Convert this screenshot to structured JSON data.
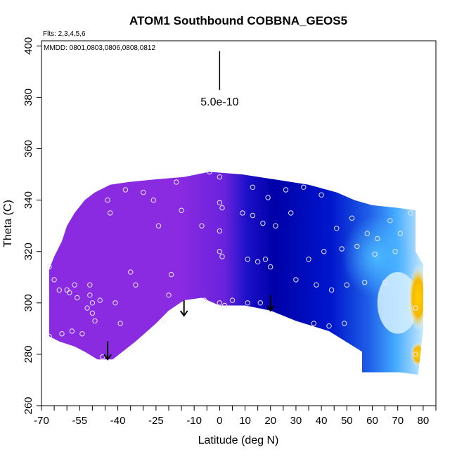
{
  "chart_data": {
    "type": "heatmap",
    "title": "ATOM1 Southbound COBBNA_GEOS5",
    "xlabel": "Latitude (deg N)",
    "ylabel": "Theta (C)",
    "xlim": [
      -70,
      85
    ],
    "ylim": [
      260,
      402
    ],
    "x_ticks": [
      -70,
      -55,
      -40,
      -25,
      -10,
      0,
      10,
      20,
      30,
      40,
      50,
      60,
      70,
      80
    ],
    "x_tick_labels": [
      "-70",
      "-55",
      "-40",
      "-25",
      "-10",
      "0",
      "10",
      "20",
      "30",
      "40",
      "50",
      "60",
      "70",
      "80"
    ],
    "y_ticks": [
      260,
      280,
      300,
      320,
      340,
      360,
      380,
      400
    ],
    "y_tick_labels": [
      "260",
      "280",
      "300",
      "320",
      "340",
      "360",
      "380",
      "400"
    ],
    "annotations": {
      "flights": "Flts: 2,3,4,5,6",
      "dates": "MMDD: 0801,0803,0806,0808,0812"
    },
    "scale_bar": {
      "label": "5.0e-10",
      "x": 0,
      "y_top": 398,
      "y_bottom": 385
    },
    "colors": {
      "south": "#8a2be2",
      "south_edge": "#7b2fe6",
      "transition": "#3a18cc",
      "north": "#0010c0",
      "deep": "#0000a8",
      "cyan": "#44aaff",
      "pale": "#cfeeff",
      "yellow": "#ffd000",
      "orange": "#f0a000",
      "points": "#e8e8ff"
    },
    "arrows": [
      {
        "x": -44,
        "y_top": 285,
        "y_bottom": 278
      },
      {
        "x": -14,
        "y_top": 301,
        "y_bottom": 295
      },
      {
        "x": 20,
        "y_top": 303,
        "y_bottom": 297
      }
    ],
    "points": [
      [
        -67,
        314
      ],
      [
        -67,
        287
      ],
      [
        -65,
        309
      ],
      [
        -63,
        305
      ],
      [
        -62,
        288
      ],
      [
        -60,
        305
      ],
      [
        -59,
        304
      ],
      [
        -58,
        289
      ],
      [
        -57,
        307
      ],
      [
        -56,
        302
      ],
      [
        -54,
        288
      ],
      [
        -52,
        298
      ],
      [
        -51,
        307
      ],
      [
        -51,
        303
      ],
      [
        -50,
        300
      ],
      [
        -50,
        296
      ],
      [
        -49,
        293
      ],
      [
        -44,
        340
      ],
      [
        -43,
        335
      ],
      [
        -46,
        279
      ],
      [
        -47,
        301
      ],
      [
        -41,
        300
      ],
      [
        -39,
        292
      ],
      [
        -37,
        344
      ],
      [
        -35,
        312
      ],
      [
        -33,
        307
      ],
      [
        -30,
        343
      ],
      [
        -26,
        340
      ],
      [
        -24,
        330
      ],
      [
        -22,
        293
      ],
      [
        -20,
        303
      ],
      [
        -19,
        311
      ],
      [
        -17,
        347
      ],
      [
        -15,
        336
      ],
      [
        -7,
        330
      ],
      [
        -6,
        301
      ],
      [
        -4,
        351
      ],
      [
        0,
        349
      ],
      [
        0,
        339
      ],
      [
        1,
        337
      ],
      [
        0,
        328
      ],
      [
        0,
        320
      ],
      [
        1,
        318
      ],
      [
        0,
        300
      ],
      [
        2,
        299
      ],
      [
        5,
        301
      ],
      [
        9,
        335
      ],
      [
        11,
        300
      ],
      [
        11,
        317
      ],
      [
        13,
        345
      ],
      [
        13,
        334
      ],
      [
        15,
        316
      ],
      [
        16,
        300
      ],
      [
        17,
        331
      ],
      [
        18,
        317
      ],
      [
        19,
        341
      ],
      [
        20,
        314
      ],
      [
        22,
        330
      ],
      [
        26,
        344
      ],
      [
        28,
        335
      ],
      [
        30,
        309
      ],
      [
        33,
        345
      ],
      [
        35,
        317
      ],
      [
        37,
        292
      ],
      [
        38,
        307
      ],
      [
        40,
        342
      ],
      [
        41,
        320
      ],
      [
        43,
        291
      ],
      [
        44,
        305
      ],
      [
        46,
        329
      ],
      [
        48,
        321
      ],
      [
        49,
        292
      ],
      [
        50,
        307
      ],
      [
        52,
        333
      ],
      [
        54,
        322
      ],
      [
        57,
        308
      ],
      [
        58,
        327
      ],
      [
        61,
        319
      ],
      [
        62,
        325
      ],
      [
        65,
        308
      ],
      [
        67,
        332
      ],
      [
        69,
        320
      ],
      [
        71,
        327
      ],
      [
        75,
        335
      ],
      [
        77,
        298
      ],
      [
        77,
        280
      ]
    ]
  }
}
